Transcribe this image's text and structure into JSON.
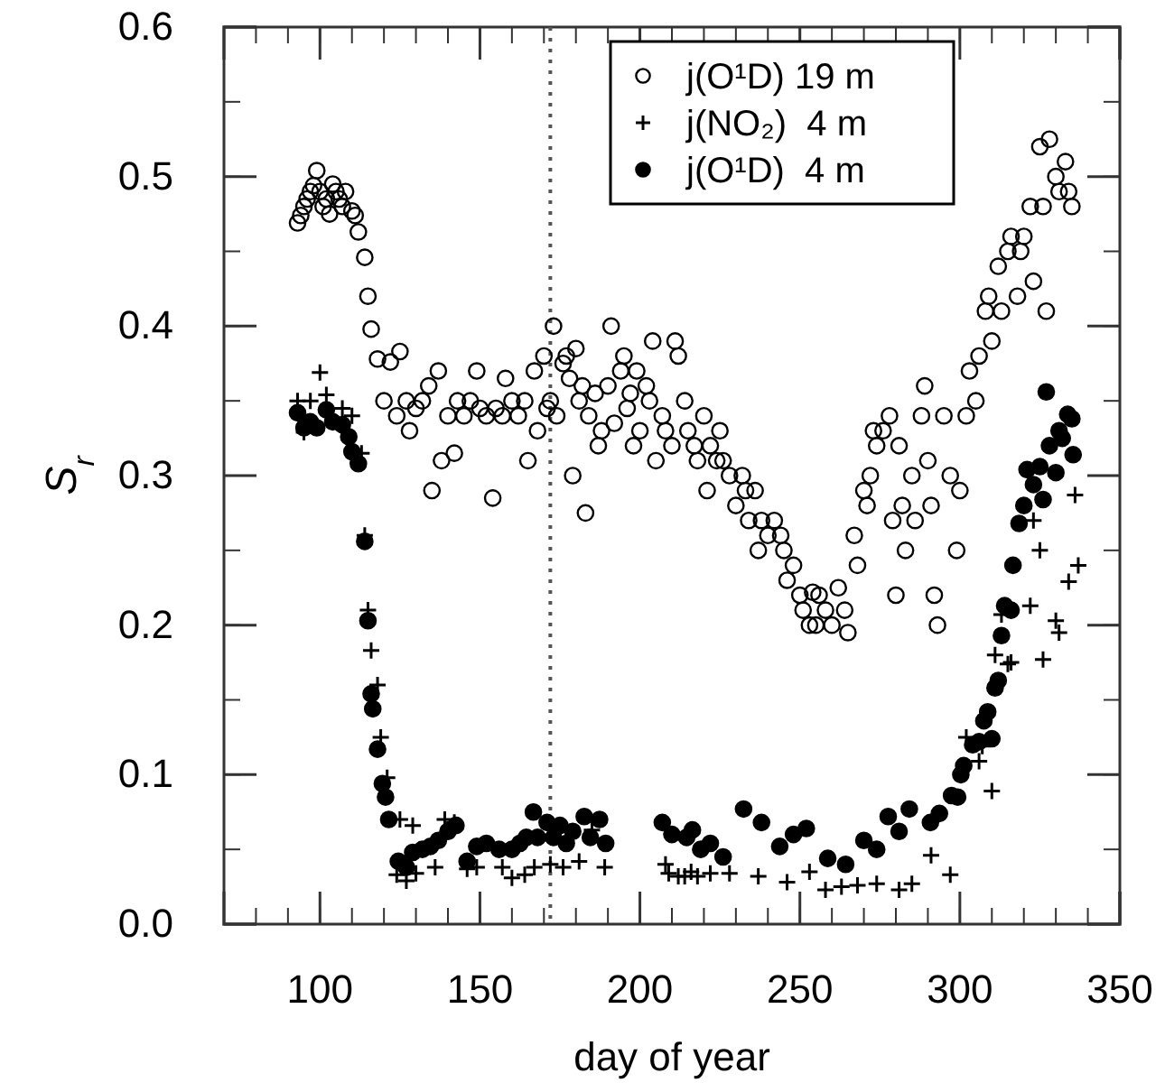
{
  "chart_data": {
    "type": "scatter",
    "xlabel": "day of year",
    "ylabel": "S$_{r}$",
    "xlim": [
      70,
      350
    ],
    "xticks": [
      100,
      150,
      200,
      250,
      300,
      350
    ],
    "ylim": [
      0,
      0.6
    ],
    "yticks": [
      {
        "value": 0,
        "label": "0.0"
      },
      0.1,
      0.2,
      0.3,
      0.4,
      0.5,
      0.6
    ],
    "legend": "top right",
    "grid": false,
    "ref_lines": [
      {
        "axis": "x",
        "value": 172,
        "line_style": "dotted",
        "color": "#555555"
      }
    ],
    "series": [
      {
        "name": "j(O¹D) 19 m",
        "color": "#000000",
        "marker": "circle-open",
        "x": [
          93,
          94,
          95,
          96,
          97,
          98,
          99,
          100,
          101,
          102,
          103,
          104,
          105,
          106,
          107,
          108,
          110,
          111,
          112,
          114,
          115,
          116,
          118,
          120,
          122,
          124,
          125,
          127,
          128,
          130,
          132,
          134,
          135,
          137,
          138,
          140,
          142,
          143,
          145,
          147,
          149,
          150,
          152,
          154,
          155,
          157,
          158,
          160,
          162,
          164,
          165,
          167,
          168,
          170,
          171,
          172,
          173,
          174,
          176,
          177,
          178,
          179,
          180,
          181,
          182,
          183,
          184,
          186,
          187,
          188,
          190,
          191,
          192,
          194,
          195,
          196,
          197,
          198,
          199,
          200,
          202,
          203,
          204,
          205,
          207,
          208,
          210,
          211,
          212,
          214,
          215,
          217,
          218,
          220,
          221,
          222,
          224,
          225,
          226,
          228,
          230,
          232,
          233,
          234,
          236,
          237,
          238,
          240,
          242,
          244,
          245,
          246,
          248,
          250,
          251,
          253,
          254,
          255,
          256,
          258,
          260,
          262,
          264,
          265,
          267,
          268,
          270,
          271,
          272,
          273,
          274,
          276,
          278,
          279,
          280,
          281,
          282,
          283,
          285,
          286,
          288,
          289,
          290,
          291,
          292,
          293,
          295,
          297,
          299,
          300,
          302,
          303,
          305,
          306,
          308,
          309,
          310,
          312,
          313,
          315,
          316,
          318,
          319,
          320,
          322,
          323,
          325,
          326,
          327,
          328,
          330,
          331,
          333,
          334,
          335
        ],
        "values": [
          0.469,
          0.474,
          0.48,
          0.485,
          0.49,
          0.494,
          0.504,
          0.49,
          0.48,
          0.485,
          0.475,
          0.495,
          0.49,
          0.485,
          0.48,
          0.49,
          0.477,
          0.474,
          0.463,
          0.446,
          0.42,
          0.398,
          0.378,
          0.35,
          0.376,
          0.34,
          0.383,
          0.35,
          0.33,
          0.345,
          0.35,
          0.36,
          0.29,
          0.37,
          0.31,
          0.34,
          0.315,
          0.35,
          0.34,
          0.35,
          0.37,
          0.345,
          0.34,
          0.285,
          0.345,
          0.34,
          0.365,
          0.35,
          0.34,
          0.35,
          0.31,
          0.37,
          0.33,
          0.38,
          0.345,
          0.35,
          0.4,
          0.34,
          0.375,
          0.38,
          0.365,
          0.3,
          0.385,
          0.35,
          0.36,
          0.275,
          0.34,
          0.355,
          0.32,
          0.33,
          0.36,
          0.4,
          0.335,
          0.37,
          0.38,
          0.345,
          0.355,
          0.32,
          0.37,
          0.33,
          0.36,
          0.35,
          0.39,
          0.31,
          0.34,
          0.33,
          0.32,
          0.39,
          0.38,
          0.35,
          0.33,
          0.32,
          0.31,
          0.34,
          0.29,
          0.32,
          0.31,
          0.33,
          0.31,
          0.3,
          0.28,
          0.3,
          0.29,
          0.27,
          0.29,
          0.25,
          0.27,
          0.26,
          0.27,
          0.26,
          0.25,
          0.23,
          0.24,
          0.22,
          0.21,
          0.2,
          0.222,
          0.2,
          0.22,
          0.21,
          0.2,
          0.225,
          0.21,
          0.195,
          0.26,
          0.24,
          0.29,
          0.28,
          0.3,
          0.33,
          0.32,
          0.33,
          0.34,
          0.27,
          0.22,
          0.32,
          0.28,
          0.25,
          0.3,
          0.27,
          0.34,
          0.36,
          0.31,
          0.28,
          0.22,
          0.2,
          0.34,
          0.3,
          0.25,
          0.29,
          0.34,
          0.37,
          0.35,
          0.38,
          0.41,
          0.42,
          0.39,
          0.44,
          0.41,
          0.45,
          0.46,
          0.42,
          0.45,
          0.46,
          0.48,
          0.43,
          0.52,
          0.48,
          0.41,
          0.525,
          0.5,
          0.49,
          0.51,
          0.49,
          0.48
        ]
      },
      {
        "name": "j(NO₂)  4 m",
        "color": "#000000",
        "marker": "cross",
        "x": [
          93,
          95,
          97,
          100,
          102,
          107,
          110,
          113,
          114,
          115,
          116,
          118,
          119,
          121,
          124,
          125,
          127,
          129,
          130,
          136,
          139,
          142,
          146,
          149,
          157,
          160,
          164,
          167,
          172,
          176,
          181,
          185,
          189,
          208,
          209,
          212,
          214,
          216,
          218,
          222,
          228,
          237,
          246,
          253,
          258,
          263,
          268,
          274,
          281,
          285,
          291,
          297,
          302,
          306,
          307,
          310,
          311,
          313,
          315,
          316,
          322,
          323,
          325,
          326,
          330,
          331,
          334,
          336,
          337
        ],
        "values": [
          0.35,
          0.329,
          0.35,
          0.369,
          0.354,
          0.345,
          0.34,
          0.315,
          0.26,
          0.21,
          0.183,
          0.16,
          0.125,
          0.098,
          0.033,
          0.07,
          0.029,
          0.066,
          0.034,
          0.038,
          0.07,
          0.068,
          0.037,
          0.038,
          0.038,
          0.031,
          0.033,
          0.038,
          0.04,
          0.038,
          0.042,
          0.063,
          0.038,
          0.04,
          0.034,
          0.032,
          0.032,
          0.035,
          0.032,
          0.034,
          0.034,
          0.032,
          0.028,
          0.035,
          0.023,
          0.025,
          0.026,
          0.027,
          0.023,
          0.027,
          0.046,
          0.033,
          0.125,
          0.109,
          0.119,
          0.089,
          0.18,
          0.207,
          0.174,
          0.175,
          0.213,
          0.27,
          0.25,
          0.177,
          0.203,
          0.195,
          0.229,
          0.287,
          0.24
        ]
      },
      {
        "name": "j(O¹D)  4 m",
        "color": "#000000",
        "marker": "circle",
        "x": [
          93,
          95,
          97,
          99,
          102,
          104,
          107,
          109,
          110,
          112,
          114,
          115,
          116,
          116.5,
          118,
          119.5,
          120.5,
          121.5,
          124.5,
          127,
          129,
          132,
          134.5,
          137,
          140,
          142.5,
          146,
          149,
          152,
          156,
          160,
          162.5,
          164.5,
          166.7,
          168,
          171,
          173,
          175,
          177,
          179,
          182.6,
          184.5,
          187.4,
          189.3,
          207,
          210,
          214.6,
          216.4,
          219,
          222,
          226,
          232.4,
          238,
          243.7,
          248,
          252,
          258.7,
          264.3,
          270,
          274,
          277.6,
          281,
          284.2,
          290.8,
          293.6,
          297.4,
          299.3,
          300.3,
          301.2,
          304,
          306,
          307.5,
          308.7,
          310,
          311,
          312,
          313,
          314,
          316,
          316.6,
          318.5,
          320,
          321,
          323,
          325,
          326,
          327,
          328,
          330,
          331,
          332,
          333.7,
          335,
          335.4
        ],
        "values": [
          0.342,
          0.332,
          0.336,
          0.332,
          0.344,
          0.336,
          0.334,
          0.326,
          0.316,
          0.308,
          0.256,
          0.203,
          0.154,
          0.144,
          0.117,
          0.094,
          0.085,
          0.07,
          0.042,
          0.038,
          0.048,
          0.05,
          0.052,
          0.056,
          0.062,
          0.066,
          0.042,
          0.052,
          0.054,
          0.05,
          0.05,
          0.054,
          0.058,
          0.075,
          0.058,
          0.068,
          0.058,
          0.066,
          0.054,
          0.062,
          0.072,
          0.058,
          0.07,
          0.054,
          0.068,
          0.06,
          0.058,
          0.063,
          0.05,
          0.054,
          0.045,
          0.077,
          0.068,
          0.052,
          0.06,
          0.064,
          0.044,
          0.04,
          0.056,
          0.05,
          0.072,
          0.062,
          0.077,
          0.068,
          0.074,
          0.086,
          0.085,
          0.1,
          0.106,
          0.12,
          0.122,
          0.136,
          0.142,
          0.124,
          0.158,
          0.163,
          0.193,
          0.213,
          0.21,
          0.24,
          0.268,
          0.28,
          0.304,
          0.294,
          0.306,
          0.284,
          0.356,
          0.32,
          0.302,
          0.33,
          0.325,
          0.341,
          0.338,
          0.314
        ]
      }
    ]
  }
}
